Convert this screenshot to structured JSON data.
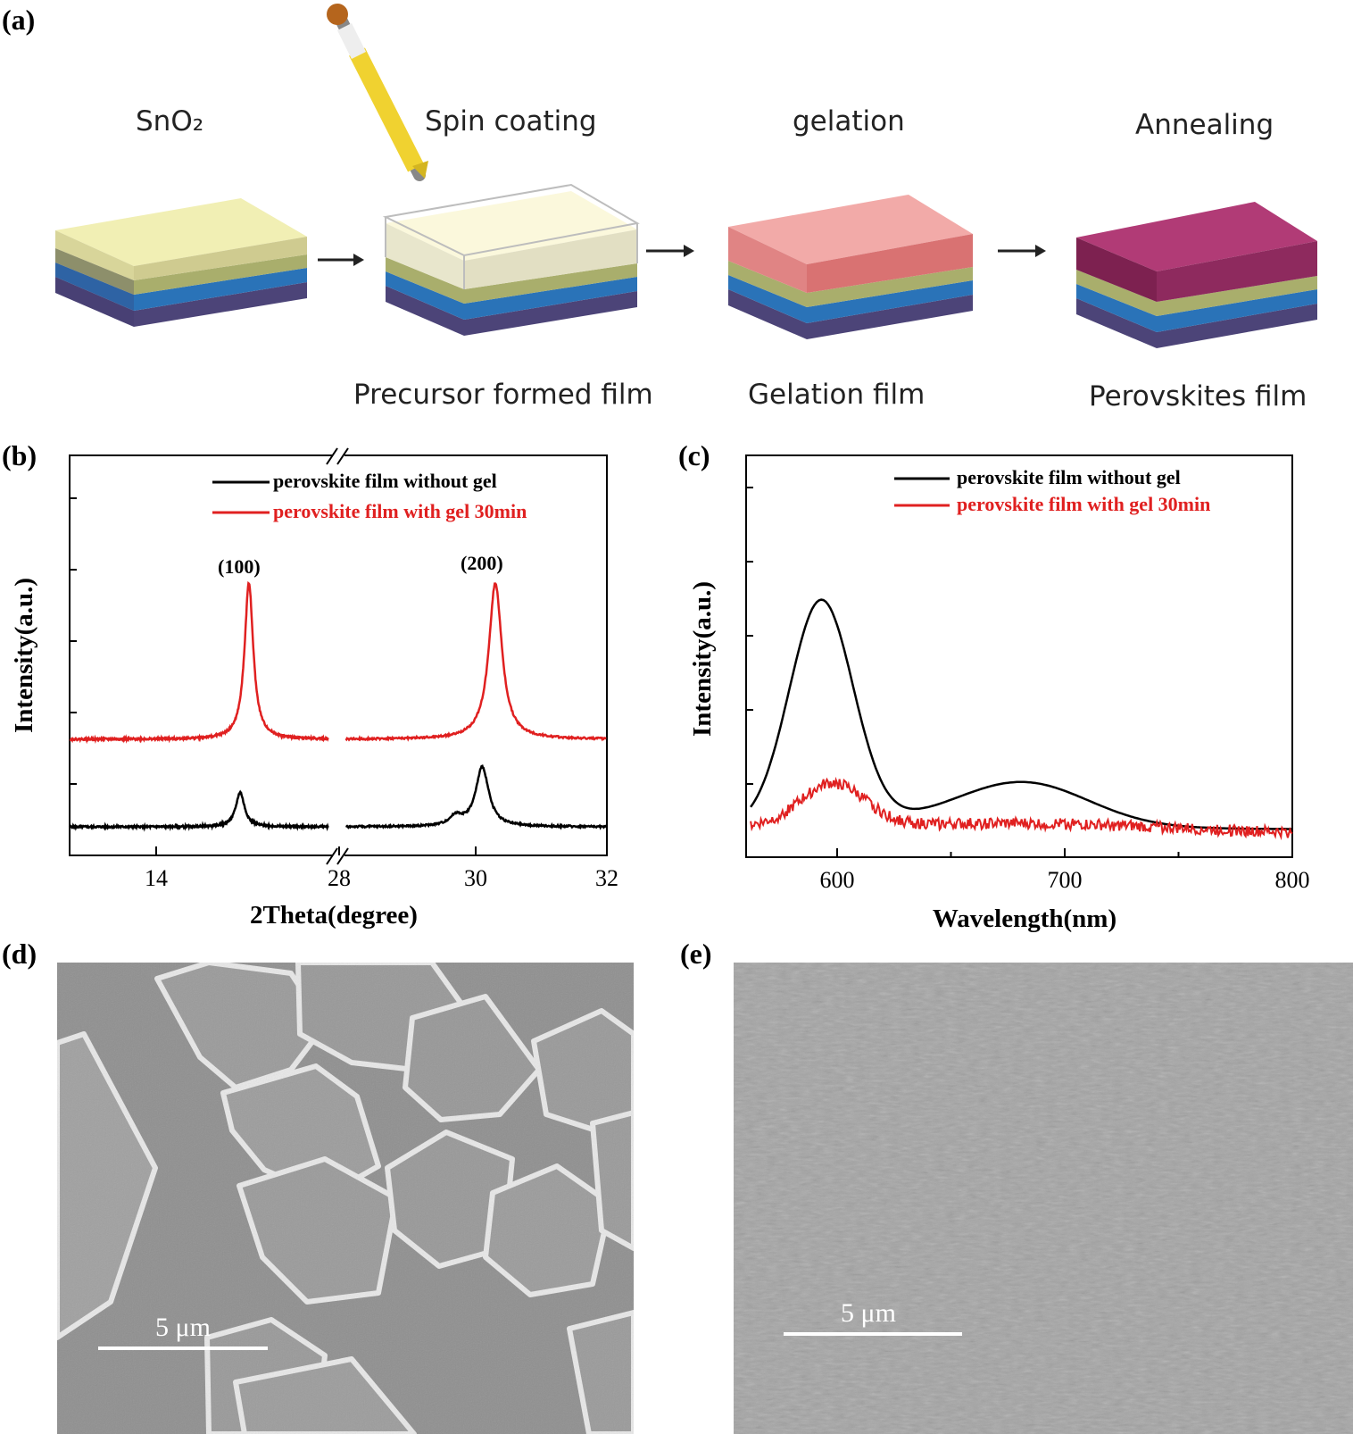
{
  "panel_a": {
    "letter": "(a)",
    "steps": [
      {
        "title": "SnO₂",
        "caption": ""
      },
      {
        "title": "Spin coating",
        "caption": "Precursor formed film"
      },
      {
        "title": "gelation",
        "caption": "Gelation film"
      },
      {
        "title": "Annealing",
        "caption": "Perovskites film"
      }
    ],
    "colors": {
      "bottom_layer": "#5a4f8a",
      "blue_layer": "#2f7fc4",
      "olive_layer": "#b8bd78",
      "sno2_top": "#f1efb4",
      "precursor_top": "#fbf8dc",
      "gel_top": "#f2aaa8",
      "perovskite_top": "#b13b76",
      "dropper": "#f0d230"
    }
  },
  "panel_b": {
    "letter": "(b)",
    "chart_data": {
      "type": "line",
      "title": "",
      "xlabel": "2Theta(degree)",
      "ylabel": "Intensity(a.u.)",
      "x_axis_break": true,
      "x_segments": [
        [
          12,
          18
        ],
        [
          28,
          32
        ]
      ],
      "xticks": [
        "14",
        "28",
        "30",
        "32"
      ],
      "legend": [
        "perovskite film without gel",
        "perovskite film with gel 30min"
      ],
      "legend_position": "top-right",
      "annotations": [
        "(100)",
        "(200)"
      ],
      "series": [
        {
          "name": "perovskite film without gel",
          "color": "#000000",
          "peaks": [
            {
              "x": 15.9,
              "height": 0.22
            },
            {
              "x": 29.7,
              "height": 0.06
            },
            {
              "x": 30.1,
              "height": 0.38
            }
          ],
          "baseline": 0.0
        },
        {
          "name": "perovskite film with gel 30min",
          "color": "#e02020",
          "peaks": [
            {
              "x": 16.1,
              "height": 1.0
            },
            {
              "x": 30.3,
              "height": 1.0
            }
          ],
          "baseline": 0.6
        }
      ]
    }
  },
  "panel_c": {
    "letter": "(c)",
    "chart_data": {
      "type": "line",
      "title": "",
      "xlabel": "Wavelength(nm)",
      "ylabel": "Intensity(a.u.)",
      "xlim": [
        560,
        800
      ],
      "xticks": [
        "600",
        "700",
        "800"
      ],
      "legend": [
        "perovskite film without gel",
        "perovskite film with gel 30min"
      ],
      "legend_position": "top-right",
      "series": [
        {
          "name": "perovskite film without gel",
          "color": "#000000",
          "peaks": [
            {
              "x": 593,
              "height": 1.0,
              "width": 14
            },
            {
              "x": 683,
              "height": 0.17,
              "width": 28
            }
          ]
        },
        {
          "name": "perovskite film with gel 30min",
          "color": "#e02020",
          "peaks": [
            {
              "x": 598,
              "height": 0.19,
              "width": 14
            }
          ]
        }
      ]
    }
  },
  "panel_d": {
    "letter": "(d)",
    "scalebar": "5 μm"
  },
  "panel_e": {
    "letter": "(e)",
    "scalebar": "5 μm"
  }
}
